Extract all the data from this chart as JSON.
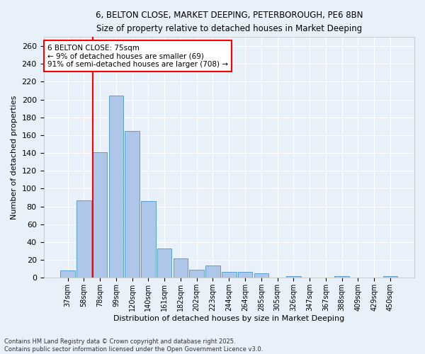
{
  "title_line1": "6, BELTON CLOSE, MARKET DEEPING, PETERBOROUGH, PE6 8BN",
  "title_line2": "Size of property relative to detached houses in Market Deeping",
  "xlabel": "Distribution of detached houses by size in Market Deeping",
  "ylabel": "Number of detached properties",
  "bar_labels": [
    "37sqm",
    "58sqm",
    "78sqm",
    "99sqm",
    "120sqm",
    "140sqm",
    "161sqm",
    "182sqm",
    "202sqm",
    "223sqm",
    "244sqm",
    "264sqm",
    "285sqm",
    "305sqm",
    "326sqm",
    "347sqm",
    "367sqm",
    "388sqm",
    "409sqm",
    "429sqm",
    "450sqm"
  ],
  "bar_values": [
    8,
    87,
    141,
    204,
    165,
    86,
    33,
    22,
    9,
    14,
    7,
    7,
    5,
    0,
    2,
    0,
    0,
    2,
    0,
    0,
    2
  ],
  "bar_color": "#aec6e8",
  "bar_edge_color": "#5a9fd4",
  "red_line_index": 2,
  "annotation_text": "6 BELTON CLOSE: 75sqm\n← 9% of detached houses are smaller (69)\n91% of semi-detached houses are larger (708) →",
  "annotation_box_color": "white",
  "annotation_box_edge": "red",
  "footer_text": "Contains HM Land Registry data © Crown copyright and database right 2025.\nContains public sector information licensed under the Open Government Licence v3.0.",
  "background_color": "#e8f0fa",
  "grid_color": "white",
  "ylim": [
    0,
    270
  ],
  "yticks": [
    0,
    20,
    40,
    60,
    80,
    100,
    120,
    140,
    160,
    180,
    200,
    220,
    240,
    260
  ]
}
